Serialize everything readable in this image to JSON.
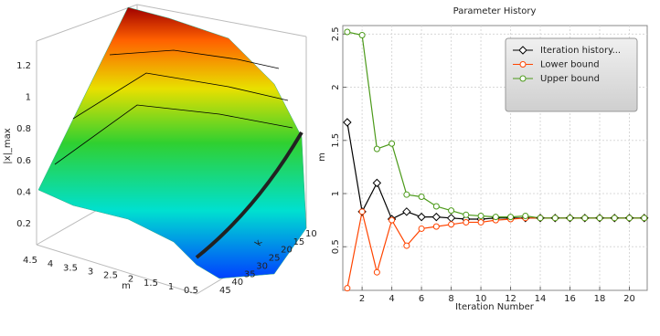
{
  "chart_data": [
    {
      "type": "surface3d",
      "xlabel": "m",
      "ylabel": "k",
      "zlabel": "|x|_max",
      "xticks": [
        4.5,
        4,
        3.5,
        3,
        2.5,
        2,
        1.5,
        1,
        0.5
      ],
      "yticks": [
        10,
        15,
        20,
        25,
        30,
        35,
        40,
        45
      ],
      "zticks": [
        0.2,
        0.4,
        0.6,
        0.8,
        1,
        1.2
      ]
    },
    {
      "type": "line",
      "title": "Parameter History",
      "xlabel": "Iteration Number",
      "ylabel": "m",
      "x": [
        1,
        2,
        3,
        4,
        5,
        6,
        7,
        8,
        9,
        10,
        11,
        12,
        13,
        14,
        15,
        16,
        17,
        18,
        19,
        20,
        21
      ],
      "xlim": [
        0.7,
        21.2
      ],
      "ylim": [
        0.09,
        2.58
      ],
      "xticks": [
        2,
        4,
        6,
        8,
        10,
        12,
        14,
        16,
        18,
        20
      ],
      "yticks": [
        0.5,
        1,
        1.5,
        2,
        2.5
      ],
      "grid": true,
      "legend": "upper right",
      "series": [
        {
          "name": "Iteration history...",
          "color": "#000000",
          "marker": "diamond",
          "values": [
            1.67,
            0.83,
            1.1,
            0.76,
            0.83,
            0.78,
            0.78,
            0.77,
            0.76,
            0.76,
            0.77,
            0.77,
            0.77,
            0.77,
            0.77,
            0.77,
            0.77,
            0.77,
            0.77,
            0.77,
            0.77
          ]
        },
        {
          "name": "Lower bound",
          "color": "#ff4400",
          "marker": "circle",
          "values": [
            0.11,
            0.83,
            0.26,
            0.75,
            0.51,
            0.67,
            0.69,
            0.71,
            0.73,
            0.73,
            0.75,
            0.76,
            0.77,
            0.77,
            0.77,
            0.77,
            0.77,
            0.77,
            0.77,
            0.77,
            0.77
          ]
        },
        {
          "name": "Upper bound",
          "color": "#4c9a1a",
          "marker": "circle",
          "values": [
            2.52,
            2.49,
            1.42,
            1.47,
            0.99,
            0.97,
            0.88,
            0.84,
            0.8,
            0.79,
            0.78,
            0.78,
            0.79,
            0.77,
            0.77,
            0.77,
            0.77,
            0.77,
            0.77,
            0.77,
            0.77
          ]
        }
      ]
    }
  ]
}
